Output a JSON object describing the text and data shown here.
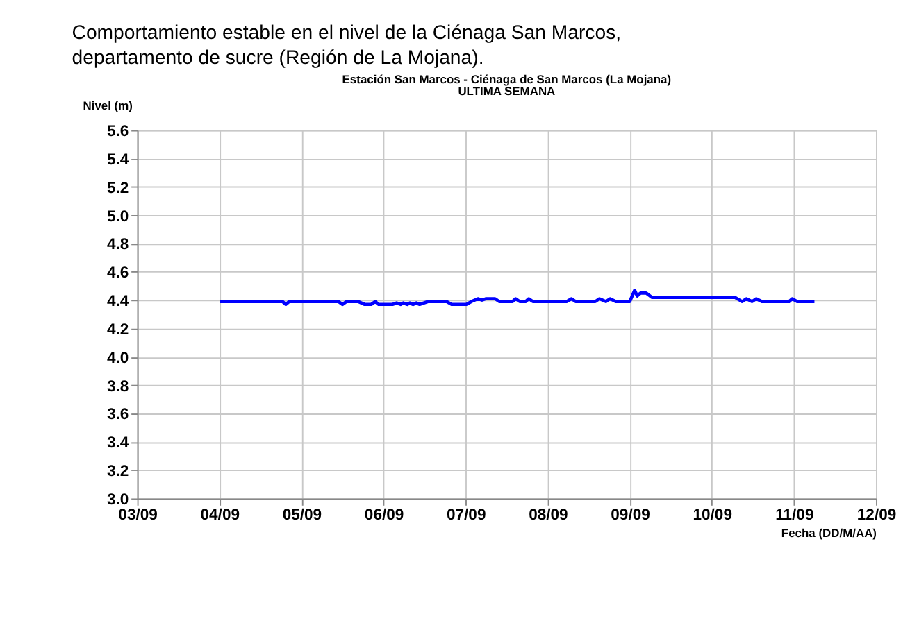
{
  "chart_data": {
    "type": "line",
    "title": "Estación San Marcos - Ciénaga de San Marcos (La Mojana)",
    "subtitle": "ULTIMA SEMANA",
    "annotations": [
      "Comportamiento estable en el nivel de la Ciénaga San Marcos,\ndepartamento de sucre (Región de La Mojana)."
    ],
    "xlabel": "Fecha (DD/M/AA)",
    "ylabel": "Nivel (m)",
    "x": [
      "--09-04T00:14",
      "--09-04T18:29",
      "--09-04T19:26",
      "--09-04T20:24",
      "--09-05T10:48",
      "--09-05T12:00",
      "--09-05T13:12",
      "--09-05T16:34",
      "--09-05T18:29",
      "--09-05T20:24",
      "--09-05T21:36",
      "--09-05T22:34",
      "--09-06T02:38",
      "--09-06T03:50",
      "--09-06T05:02",
      "--09-06T05:46",
      "--09-06T06:58",
      "--09-06T07:41",
      "--09-06T08:38",
      "--09-06T09:36",
      "--09-06T10:34",
      "--09-06T12:58",
      "--09-06T18:29",
      "--09-06T19:55",
      "--09-07T00:14",
      "--09-07T01:41",
      "--09-07T03:36",
      "--09-07T04:48",
      "--09-07T06:00",
      "--09-07T08:38",
      "--09-07T09:50",
      "--09-07T13:41",
      "--09-07T14:38",
      "--09-07T15:50",
      "--09-07T17:31",
      "--09-07T18:29",
      "--09-07T19:41",
      "--09-08T05:31",
      "--09-08T06:58",
      "--09-08T08:10",
      "--09-08T13:55",
      "--09-08T15:07",
      "--09-08T17:02",
      "--09-08T18:14",
      "--09-08T19:55",
      "--09-09T00:00",
      "--09-09T01:26",
      "--09-09T02:10",
      "--09-09T03:07",
      "--09-09T04:48",
      "--09-09T06:29",
      "--09-10T06:43",
      "--09-10T08:53",
      "--09-10T10:05",
      "--09-10T11:46",
      "--09-10T12:58",
      "--09-10T14:38",
      "--09-10T22:34",
      "--09-10T23:31",
      "--09-11T00:58",
      "--09-11T06:00"
    ],
    "series": [
      {
        "color": "#0000ff",
        "values": [
          4.39,
          4.39,
          4.37,
          4.39,
          4.39,
          4.37,
          4.39,
          4.39,
          4.37,
          4.37,
          4.39,
          4.37,
          4.37,
          4.38,
          4.37,
          4.38,
          4.37,
          4.38,
          4.37,
          4.38,
          4.37,
          4.39,
          4.39,
          4.37,
          4.37,
          4.39,
          4.41,
          4.4,
          4.41,
          4.41,
          4.39,
          4.39,
          4.41,
          4.39,
          4.39,
          4.41,
          4.39,
          4.39,
          4.41,
          4.39,
          4.39,
          4.41,
          4.39,
          4.41,
          4.39,
          4.39,
          4.47,
          4.43,
          4.45,
          4.45,
          4.42,
          4.42,
          4.39,
          4.41,
          4.39,
          4.41,
          4.39,
          4.39,
          4.41,
          4.39,
          4.39
        ]
      }
    ],
    "xlim": [
      "--09-03",
      "--09-12"
    ],
    "xticks": [
      {
        "value": "--09-03",
        "label": "03/09"
      },
      {
        "value": "--09-04",
        "label": "04/09"
      },
      {
        "value": "--09-05",
        "label": "05/09"
      },
      {
        "value": "--09-06",
        "label": "06/09"
      },
      {
        "value": "--09-07",
        "label": "07/09"
      },
      {
        "value": "--09-08",
        "label": "08/09"
      },
      {
        "value": "--09-09",
        "label": "09/09"
      },
      {
        "value": "--09-10",
        "label": "10/09"
      },
      {
        "value": "--09-11",
        "label": "11/09"
      },
      {
        "value": "--09-12",
        "label": "12/09"
      }
    ],
    "ylim": [
      3.0,
      5.6
    ],
    "yticks": [
      {
        "value": 3.0,
        "label": "3.0"
      },
      {
        "value": 3.2,
        "label": "3.2"
      },
      {
        "value": 3.4,
        "label": "3.4"
      },
      {
        "value": 3.6,
        "label": "3.6"
      },
      {
        "value": 3.8,
        "label": "3.8"
      },
      {
        "value": 4.0,
        "label": "4.0"
      },
      {
        "value": 4.2,
        "label": "4.2"
      },
      {
        "value": 4.4,
        "label": "4.4"
      },
      {
        "value": 4.6,
        "label": "4.6"
      },
      {
        "value": 4.8,
        "label": "4.8"
      },
      {
        "value": 5.0,
        "label": "5.0"
      },
      {
        "value": 5.2,
        "label": "5.2"
      },
      {
        "value": 5.4,
        "label": "5.4"
      },
      {
        "value": 5.6,
        "label": "5.6"
      }
    ],
    "grid": true,
    "marker": "none",
    "line_style": "solid"
  }
}
